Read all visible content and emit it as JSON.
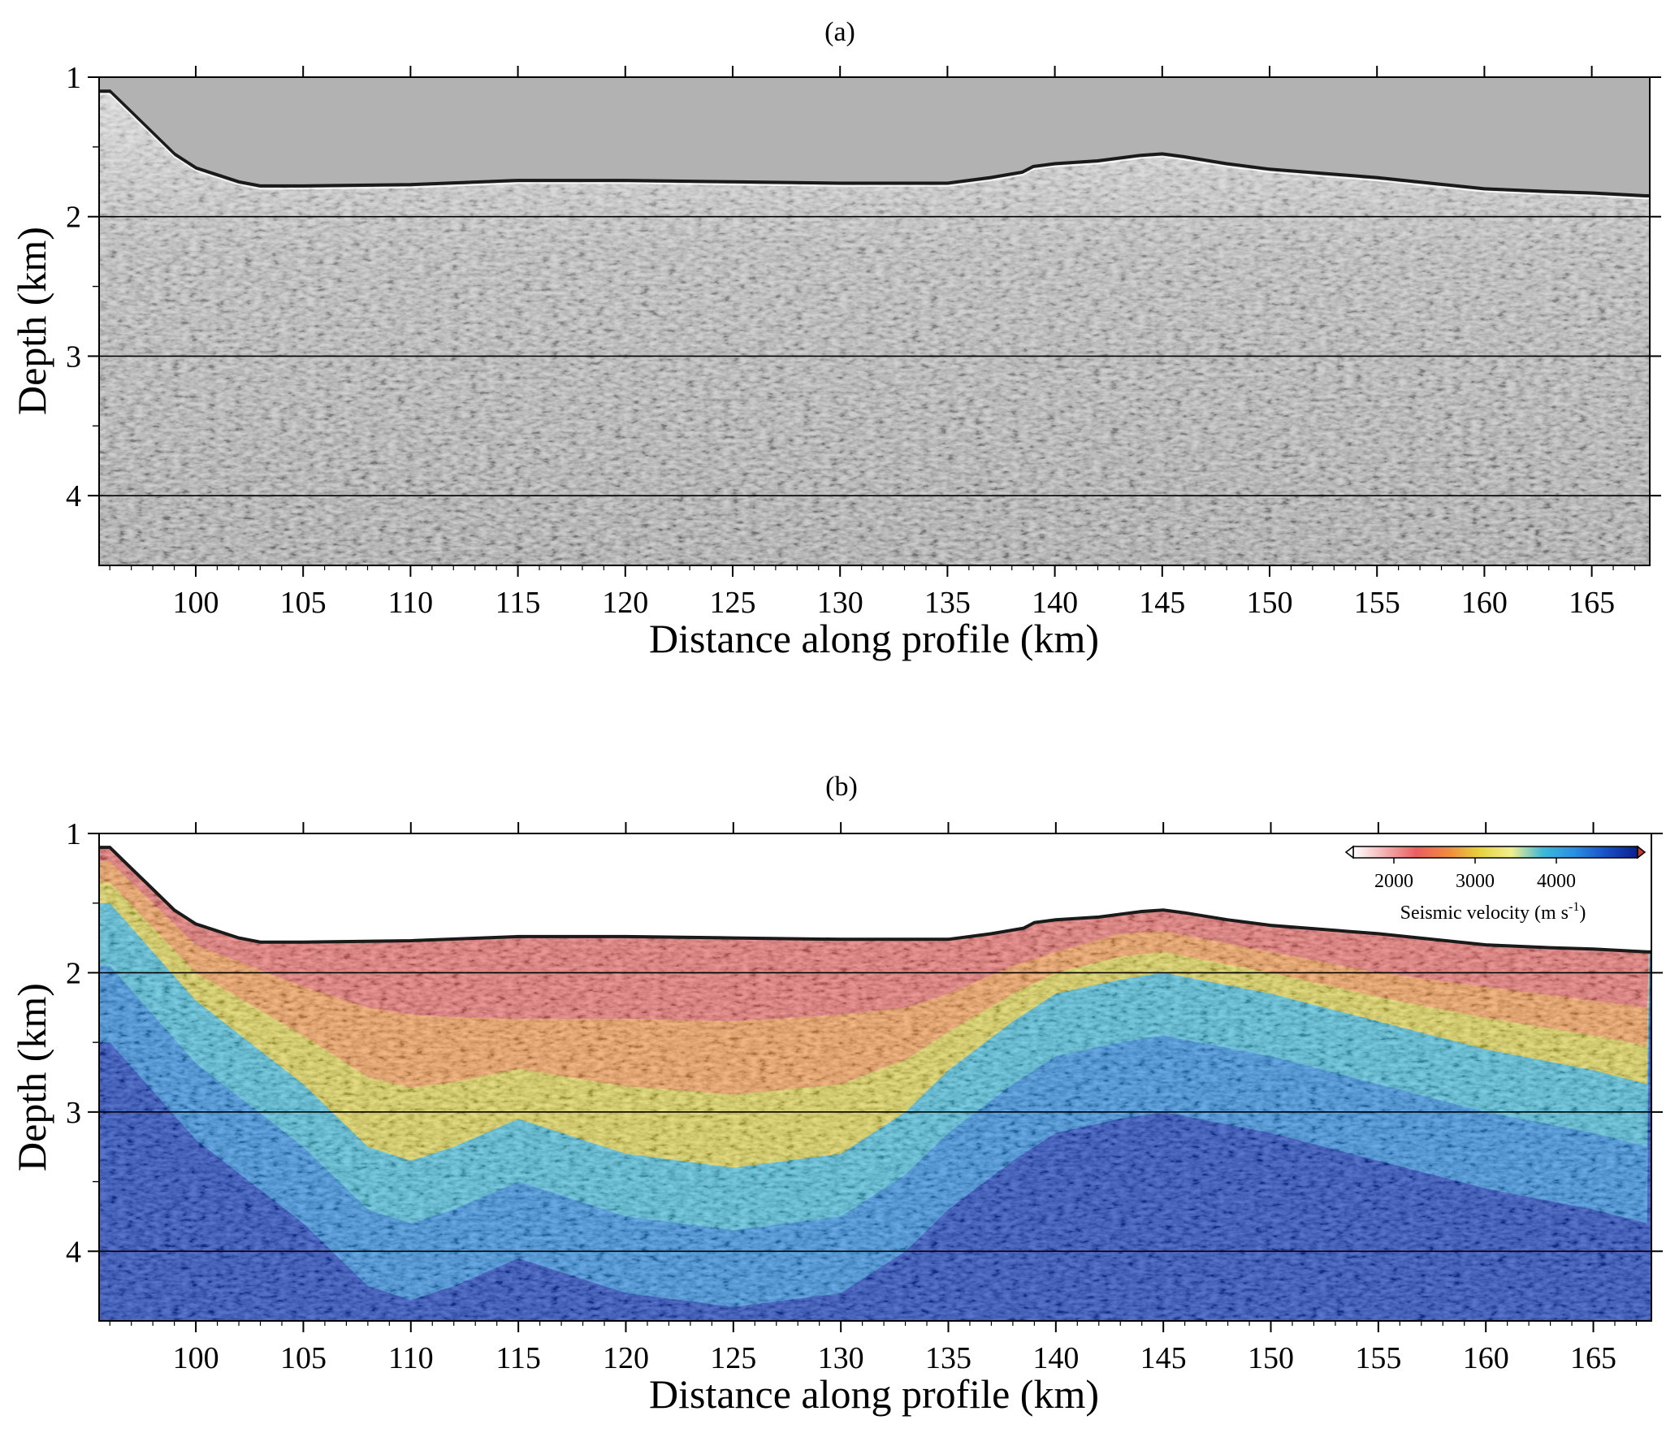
{
  "chart_data": [
    {
      "type": "image",
      "panel_label": "(a)",
      "xlabel": "Distance along profile (km)",
      "ylabel": "Depth (km)",
      "xlim": [
        95.5,
        167.7
      ],
      "ylim": [
        4.5,
        1
      ],
      "x_ticks": [
        100,
        105,
        110,
        115,
        120,
        125,
        130,
        135,
        140,
        145,
        150,
        155,
        160,
        165
      ],
      "y_ticks": [
        1,
        2,
        3,
        4
      ],
      "gridlines_y": [
        2,
        3,
        4
      ],
      "seafloor_profile": {
        "distance_km": [
          96.0,
          97.0,
          98.0,
          99.0,
          100.0,
          101.0,
          102.0,
          103.0,
          105.0,
          110.0,
          115.0,
          120.0,
          125.0,
          130.0,
          135.0,
          137.0,
          138.5,
          139.0,
          140.0,
          142.0,
          144.0,
          145.0,
          146.0,
          148.0,
          150.0,
          155.0,
          160.0,
          163.0,
          165.0,
          167.5
        ],
        "depth_km": [
          1.1,
          1.25,
          1.4,
          1.55,
          1.65,
          1.7,
          1.75,
          1.78,
          1.78,
          1.77,
          1.74,
          1.74,
          1.75,
          1.76,
          1.76,
          1.72,
          1.68,
          1.64,
          1.62,
          1.6,
          1.56,
          1.55,
          1.57,
          1.62,
          1.66,
          1.72,
          1.8,
          1.82,
          1.83,
          1.85
        ]
      }
    },
    {
      "type": "heatmap",
      "panel_label": "(b)",
      "xlabel": "Distance along profile (km)",
      "ylabel": "Depth (km)",
      "xlim": [
        95.5,
        167.7
      ],
      "ylim": [
        4.5,
        1
      ],
      "x_ticks": [
        100,
        105,
        110,
        115,
        120,
        125,
        130,
        135,
        140,
        145,
        150,
        155,
        160,
        165
      ],
      "y_ticks": [
        1,
        2,
        3,
        4
      ],
      "gridlines_y": [
        2,
        3,
        4
      ],
      "colorbar": {
        "label": "Seismic velocity (m s",
        "label_superscript": "-1",
        "label_end": ")",
        "range": [
          1500,
          5000
        ],
        "ticks": [
          2000,
          3000,
          4000
        ],
        "colors": [
          "#ffffff",
          "#f3b0b0",
          "#e86060",
          "#ee8a40",
          "#e6d240",
          "#f2ee90",
          "#3fb8d8",
          "#2a8fe0",
          "#1a4fc4",
          "#0a1f8c"
        ],
        "location": "top-right"
      },
      "velocity_contours": {
        "distance_km": [
          96,
          100,
          105,
          108,
          110,
          112,
          115,
          118,
          120,
          125,
          130,
          133,
          135,
          138,
          140,
          143,
          145,
          150,
          155,
          160,
          165,
          167.5
        ],
        "v2000_depth_km": [
          1.2,
          1.8,
          2.1,
          2.25,
          2.3,
          2.32,
          2.33,
          2.33,
          2.33,
          2.35,
          2.3,
          2.25,
          2.15,
          1.95,
          1.85,
          1.72,
          1.7,
          1.85,
          2.0,
          2.1,
          2.2,
          2.25
        ],
        "v3000_depth_km": [
          1.5,
          2.2,
          2.8,
          3.25,
          3.35,
          3.25,
          3.05,
          3.2,
          3.3,
          3.4,
          3.3,
          3.0,
          2.7,
          2.35,
          2.15,
          2.05,
          2.0,
          2.15,
          2.35,
          2.55,
          2.7,
          2.8
        ]
      }
    }
  ]
}
